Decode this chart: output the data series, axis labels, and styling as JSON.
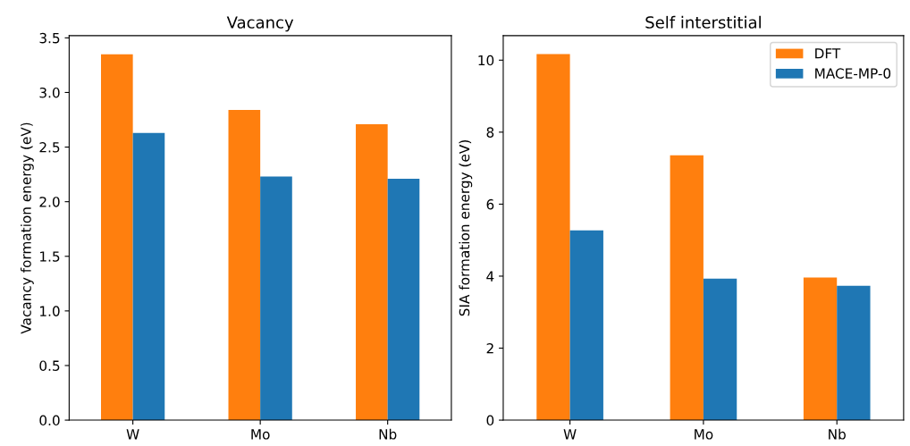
{
  "chart_data": [
    {
      "type": "bar",
      "title": "Vacancy",
      "ylabel": "Vacancy formation energy (eV)",
      "categories": [
        "W",
        "Mo",
        "Nb"
      ],
      "series": [
        {
          "color": "#ff7f0e",
          "values": [
            3.35,
            2.84,
            2.71
          ]
        },
        {
          "color": "#1f77b4",
          "values": [
            2.63,
            2.23,
            2.21
          ]
        }
      ],
      "ylim": [
        0,
        3.52
      ],
      "yticks": [
        {
          "value": 0,
          "label": "0.0"
        },
        {
          "value": 0.5,
          "label": "0.5"
        },
        {
          "value": 1,
          "label": "1.0"
        },
        {
          "value": 1.5,
          "label": "1.5"
        },
        {
          "value": 2,
          "label": "2.0"
        },
        {
          "value": 2.5,
          "label": "2.5"
        },
        {
          "value": 3,
          "label": "3.0"
        },
        {
          "value": 3.5,
          "label": "3.5"
        }
      ],
      "grid": false
    },
    {
      "type": "bar",
      "title": "Self interstitial",
      "ylabel": "SIA formation energy (eV)",
      "categories": [
        "W",
        "Mo",
        "Nb"
      ],
      "series": [
        {
          "name": "DFT",
          "color": "#ff7f0e",
          "values": [
            10.17,
            7.36,
            3.96
          ]
        },
        {
          "name": "MACE-MP-0",
          "color": "#1f77b4",
          "values": [
            5.27,
            3.93,
            3.73
          ]
        }
      ],
      "ylim": [
        0,
        10.68
      ],
      "yticks": [
        0,
        2,
        4,
        6,
        8,
        10
      ],
      "legend": "top right",
      "grid": false
    }
  ]
}
